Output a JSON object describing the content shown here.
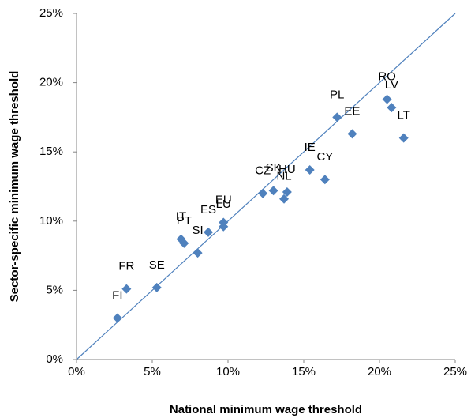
{
  "chart_data": {
    "type": "scatter",
    "x_label": "National minimum wage threshold",
    "y_label": "Sector-specific minimum wage threshold",
    "labels": [
      "FI",
      "FR",
      "SE",
      "IT",
      "PT",
      "SI",
      "ES",
      "EU",
      "LU",
      "CZ",
      "SK",
      "HU",
      "NL",
      "IE",
      "CY",
      "PL",
      "EE",
      "RO",
      "LV",
      "LT"
    ],
    "x": [
      2.7,
      3.3,
      5.3,
      6.9,
      7.1,
      8.0,
      8.7,
      9.7,
      9.7,
      12.3,
      13.0,
      13.9,
      13.7,
      15.4,
      16.4,
      17.2,
      18.2,
      20.5,
      20.8,
      21.6
    ],
    "values": [
      3.0,
      5.1,
      5.2,
      8.7,
      8.4,
      7.7,
      9.2,
      9.9,
      9.6,
      12.0,
      12.2,
      12.1,
      11.6,
      13.7,
      13.0,
      17.5,
      16.3,
      18.8,
      18.2,
      16.0
    ],
    "color": "#4f81bd",
    "identity_line": true,
    "xlim": [
      0,
      25
    ],
    "ylim": [
      0,
      25
    ],
    "xticks": [
      {
        "value": 0,
        "label": "0%"
      },
      {
        "value": 5,
        "label": "5%"
      },
      {
        "value": 10,
        "label": "10%"
      },
      {
        "value": 15,
        "label": "15%"
      },
      {
        "value": 20,
        "label": "20%"
      },
      {
        "value": 25,
        "label": "25%"
      }
    ],
    "yticks": [
      {
        "value": 0,
        "label": "0%"
      },
      {
        "value": 5,
        "label": "5%"
      },
      {
        "value": 10,
        "label": "10%"
      },
      {
        "value": 15,
        "label": "15%"
      },
      {
        "value": 20,
        "label": "20%"
      },
      {
        "value": 25,
        "label": "25%"
      }
    ]
  }
}
